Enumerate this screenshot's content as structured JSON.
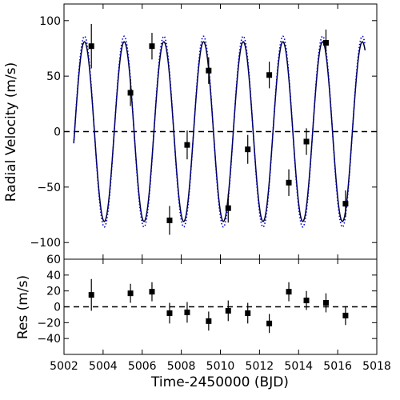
{
  "chart_data": [
    {
      "type": "scatter",
      "panel": "top",
      "ylabel": "Radial Velocity (m/s)",
      "xlim": [
        5002,
        5018
      ],
      "ylim": [
        -115,
        115
      ],
      "yticks": [
        -100,
        -50,
        0,
        50,
        100
      ],
      "xticks": [
        5002,
        5004,
        5006,
        5008,
        5010,
        5012,
        5014,
        5016,
        5018
      ],
      "grid": false,
      "zero_line": 0,
      "series": [
        {
          "kind": "errorbar",
          "marker": "square",
          "color": "#000000",
          "x": [
            5003.4,
            5005.4,
            5006.5,
            5007.4,
            5008.3,
            5009.4,
            5010.4,
            5011.4,
            5012.5,
            5013.5,
            5014.4,
            5015.4,
            5016.4
          ],
          "y": [
            77,
            35,
            77,
            -80,
            -12,
            55,
            -69,
            -16,
            51,
            -46,
            -9,
            80,
            -65
          ],
          "yerr": [
            20,
            12,
            12,
            13,
            13,
            12,
            13,
            13,
            12,
            12,
            12,
            12,
            12
          ]
        },
        {
          "kind": "model-solid",
          "color": "#000033",
          "amplitude": 81,
          "period": 2.03,
          "phase_x": 5002.54,
          "x_range": [
            5002.5,
            5017.4
          ]
        },
        {
          "kind": "model-dotted",
          "color": "#0000cc",
          "amplitude": 86,
          "period": 2.03,
          "phase_x": 5002.54,
          "x_range": [
            5002.5,
            5017.4
          ]
        }
      ]
    },
    {
      "type": "scatter",
      "panel": "bottom",
      "ylabel": "Res (m/s)",
      "xlabel": "Time-2450000 (BJD)",
      "xlim": [
        5002,
        5018
      ],
      "ylim": [
        -60,
        60
      ],
      "yticks": [
        -40,
        -20,
        0,
        20,
        40,
        60
      ],
      "xticks": [
        5002,
        5004,
        5006,
        5008,
        5010,
        5012,
        5014,
        5016,
        5018
      ],
      "grid": false,
      "zero_line": 0,
      "series": [
        {
          "kind": "errorbar",
          "marker": "square",
          "color": "#000000",
          "x": [
            5003.4,
            5005.4,
            5006.5,
            5007.4,
            5008.3,
            5009.4,
            5010.4,
            5011.4,
            5012.5,
            5013.5,
            5014.4,
            5015.4,
            5016.4
          ],
          "y": [
            15,
            17,
            19,
            -8,
            -7,
            -18,
            -5,
            -8,
            -21,
            19,
            8,
            5,
            -11
          ],
          "yerr": [
            20,
            12,
            12,
            13,
            13,
            12,
            13,
            13,
            12,
            12,
            12,
            12,
            12
          ]
        }
      ]
    }
  ]
}
